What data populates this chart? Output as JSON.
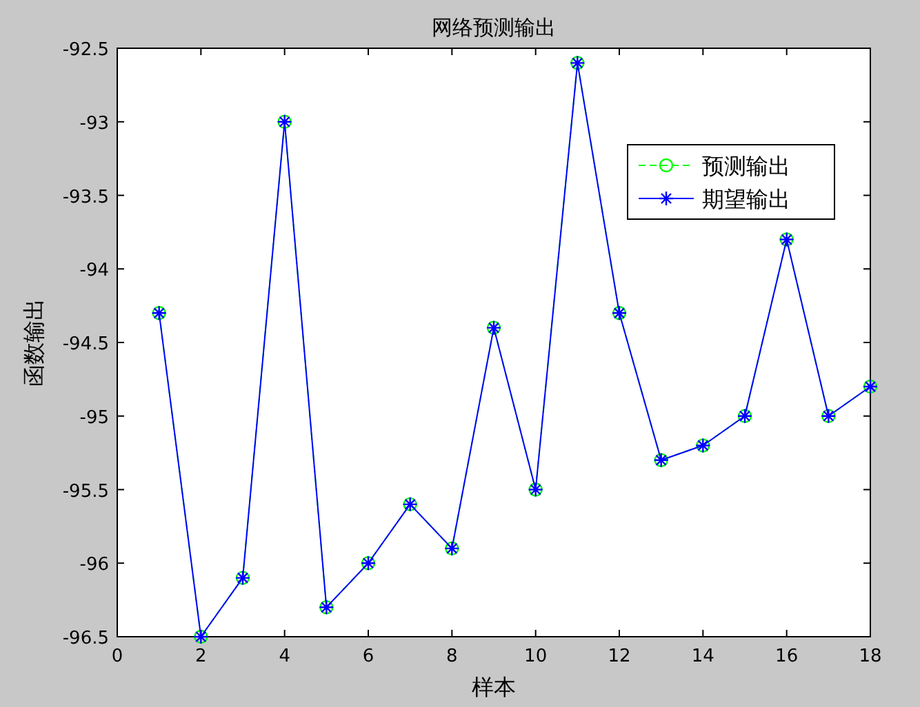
{
  "chart_data": {
    "type": "line",
    "title": "网络预测输出",
    "xlabel": "样本",
    "ylabel": "函数输出",
    "x": [
      1,
      2,
      3,
      4,
      5,
      6,
      7,
      8,
      9,
      10,
      11,
      12,
      13,
      14,
      15,
      16,
      17,
      18
    ],
    "xlim": [
      0,
      18
    ],
    "xticks": [
      0,
      2,
      4,
      6,
      8,
      10,
      12,
      14,
      16,
      18
    ],
    "ylim": [
      -96.5,
      -92.5
    ],
    "yticks": [
      -96.5,
      -96,
      -95.5,
      -95,
      -94.5,
      -94,
      -93.5,
      -93,
      -92.5
    ],
    "legend": "top right",
    "series": [
      {
        "name": "预测输出",
        "color": "#00ff00",
        "marker": "circle",
        "line_style": "dashed",
        "values": [
          -94.3,
          -96.5,
          -96.1,
          -93.0,
          -96.3,
          -96.0,
          -95.6,
          -95.9,
          -94.4,
          -95.5,
          -92.6,
          -94.3,
          -95.3,
          -95.2,
          -95.0,
          -93.8,
          -95.0,
          -94.8
        ]
      },
      {
        "name": "期望输出",
        "color": "#0000ff",
        "marker": "cross",
        "line_style": "solid",
        "values": [
          -94.3,
          -96.5,
          -96.1,
          -93.0,
          -96.3,
          -96.0,
          -95.6,
          -95.9,
          -94.4,
          -95.5,
          -92.6,
          -94.3,
          -95.3,
          -95.2,
          -95.0,
          -93.8,
          -95.0,
          -94.8
        ]
      }
    ]
  }
}
